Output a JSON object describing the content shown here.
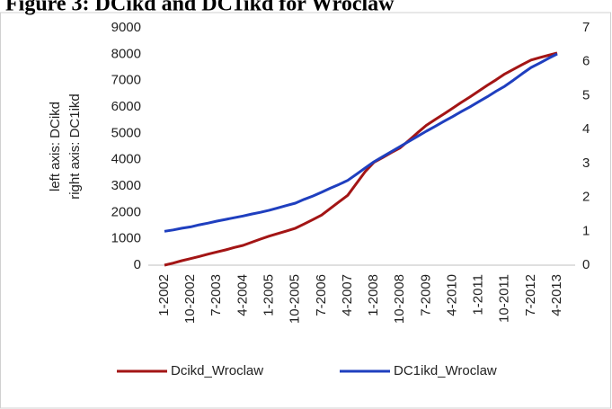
{
  "chart_data": {
    "type": "line",
    "title": "Figure 3: DCikd and DC1ikd for Wroclaw",
    "ylabel": "left axis: DCikd",
    "y2label": "right axis: DC1ikd",
    "categories": [
      "1-2002",
      null,
      null,
      "10-2002",
      null,
      null,
      "7-2003",
      null,
      null,
      "4-2004",
      null,
      null,
      "1-2005",
      null,
      null,
      "10-2005",
      null,
      null,
      "7-2006",
      null,
      null,
      "4-2007",
      null,
      null,
      "1-2008",
      null,
      null,
      "10-2008",
      null,
      null,
      "7-2009",
      null,
      null,
      "4-2010",
      null,
      null,
      "1-2011",
      null,
      null,
      "10-2011",
      null,
      null,
      "7-2012",
      null,
      null,
      "4-2013"
    ],
    "series": [
      {
        "name": "Dcikd_Wroclaw",
        "color": "#a31515",
        "values": [
          0,
          80,
          170,
          250,
          330,
          420,
          500,
          580,
          670,
          750,
          870,
          990,
          1100,
          1200,
          1300,
          1400,
          1560,
          1730,
          1900,
          2150,
          2400,
          2650,
          3100,
          3550,
          3900,
          4080,
          4270,
          4450,
          4730,
          5020,
          5300,
          5520,
          5730,
          5950,
          6170,
          6380,
          6600,
          6820,
          7030,
          7250,
          7430,
          7610,
          7780,
          7870,
          7960,
          8050
        ]
      },
      {
        "name": "DC1ikd_Wroclaw",
        "color": "#1f3fbf",
        "axis": "y2",
        "values": [
          1.0,
          1.04,
          1.09,
          1.13,
          1.19,
          1.24,
          1.3,
          1.35,
          1.4,
          1.45,
          1.51,
          1.56,
          1.62,
          1.69,
          1.76,
          1.83,
          1.94,
          2.04,
          2.15,
          2.27,
          2.38,
          2.5,
          2.68,
          2.87,
          3.05,
          3.2,
          3.35,
          3.5,
          3.65,
          3.8,
          3.95,
          4.09,
          4.24,
          4.38,
          4.53,
          4.67,
          4.82,
          4.97,
          5.13,
          5.28,
          5.46,
          5.65,
          5.83,
          5.96,
          6.1,
          6.23
        ]
      }
    ],
    "ylim": [
      0,
      9000
    ],
    "yticks": [
      0,
      1000,
      2000,
      3000,
      4000,
      5000,
      6000,
      7000,
      8000,
      9000
    ],
    "y2lim": [
      0,
      7
    ],
    "y2ticks": [
      0,
      1,
      2,
      3,
      4,
      5,
      6,
      7
    ],
    "grid": false,
    "legend": "bottom"
  }
}
